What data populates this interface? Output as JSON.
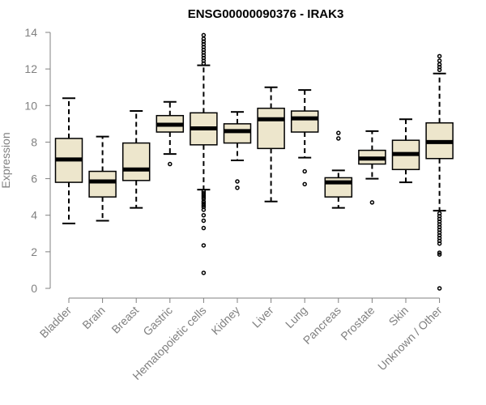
{
  "chart_data": {
    "type": "boxplot",
    "title": "ENSG00000090376 - IRAK3",
    "xlabel": "",
    "ylabel": "Expression",
    "ylim": [
      0,
      14
    ],
    "yticks": [
      0,
      2,
      4,
      6,
      8,
      10,
      12,
      14
    ],
    "colors": {
      "box_fill": "#ede6cc",
      "outline": "#000000",
      "axis": "#808080"
    },
    "categories": [
      "Bladder",
      "Brain",
      "Breast",
      "Gastric",
      "Hematopoietic cells",
      "Kidney",
      "Liver",
      "Lung",
      "Pancreas",
      "Prostate",
      "Skin",
      "Unknown / Other"
    ],
    "boxes": [
      {
        "name": "Bladder",
        "whisker_low": 3.55,
        "q1": 5.8,
        "median": 7.05,
        "q3": 8.2,
        "whisker_high": 10.4,
        "outliers": []
      },
      {
        "name": "Brain",
        "whisker_low": 3.7,
        "q1": 5.0,
        "median": 5.85,
        "q3": 6.4,
        "whisker_high": 8.3,
        "outliers": []
      },
      {
        "name": "Breast",
        "whisker_low": 4.4,
        "q1": 5.9,
        "median": 6.5,
        "q3": 7.95,
        "whisker_high": 9.7,
        "outliers": []
      },
      {
        "name": "Gastric",
        "whisker_low": 7.35,
        "q1": 8.55,
        "median": 8.95,
        "q3": 9.45,
        "whisker_high": 10.2,
        "outliers": [
          6.8
        ]
      },
      {
        "name": "Hematopoietic cells",
        "whisker_low": 5.4,
        "q1": 7.85,
        "median": 8.75,
        "q3": 9.6,
        "whisker_high": 12.2,
        "outliers": [
          0.85,
          2.35,
          3.3,
          3.7,
          4.0,
          4.3,
          4.45,
          4.55,
          4.65,
          4.75,
          4.9,
          5.0,
          5.1,
          5.2,
          5.3,
          12.3,
          12.45,
          12.6,
          12.75,
          12.9,
          13.05,
          13.2,
          13.35,
          13.5,
          13.65,
          13.85
        ]
      },
      {
        "name": "Kidney",
        "whisker_low": 7.0,
        "q1": 7.95,
        "median": 8.6,
        "q3": 9.0,
        "whisker_high": 9.65,
        "outliers": [
          5.85,
          5.5
        ]
      },
      {
        "name": "Liver",
        "whisker_low": 4.75,
        "q1": 7.65,
        "median": 9.25,
        "q3": 9.85,
        "whisker_high": 11.0,
        "outliers": []
      },
      {
        "name": "Lung",
        "whisker_low": 7.15,
        "q1": 8.55,
        "median": 9.3,
        "q3": 9.7,
        "whisker_high": 10.85,
        "outliers": [
          6.4,
          5.7
        ]
      },
      {
        "name": "Pancreas",
        "whisker_low": 4.4,
        "q1": 5.0,
        "median": 5.8,
        "q3": 6.05,
        "whisker_high": 6.45,
        "outliers": [
          8.2,
          8.5
        ]
      },
      {
        "name": "Prostate",
        "whisker_low": 6.0,
        "q1": 6.8,
        "median": 7.1,
        "q3": 7.55,
        "whisker_high": 8.6,
        "outliers": [
          4.7
        ]
      },
      {
        "name": "Skin",
        "whisker_low": 5.8,
        "q1": 6.5,
        "median": 7.35,
        "q3": 8.1,
        "whisker_high": 9.25,
        "outliers": []
      },
      {
        "name": "Unknown / Other",
        "whisker_low": 4.25,
        "q1": 7.1,
        "median": 8.0,
        "q3": 9.05,
        "whisker_high": 11.75,
        "outliers": [
          0.0,
          1.85,
          1.95,
          2.45,
          2.6,
          2.75,
          2.9,
          3.05,
          3.2,
          3.35,
          3.5,
          3.65,
          3.8,
          3.95,
          4.1,
          11.95,
          12.1,
          12.25,
          12.45,
          12.7
        ]
      }
    ]
  }
}
